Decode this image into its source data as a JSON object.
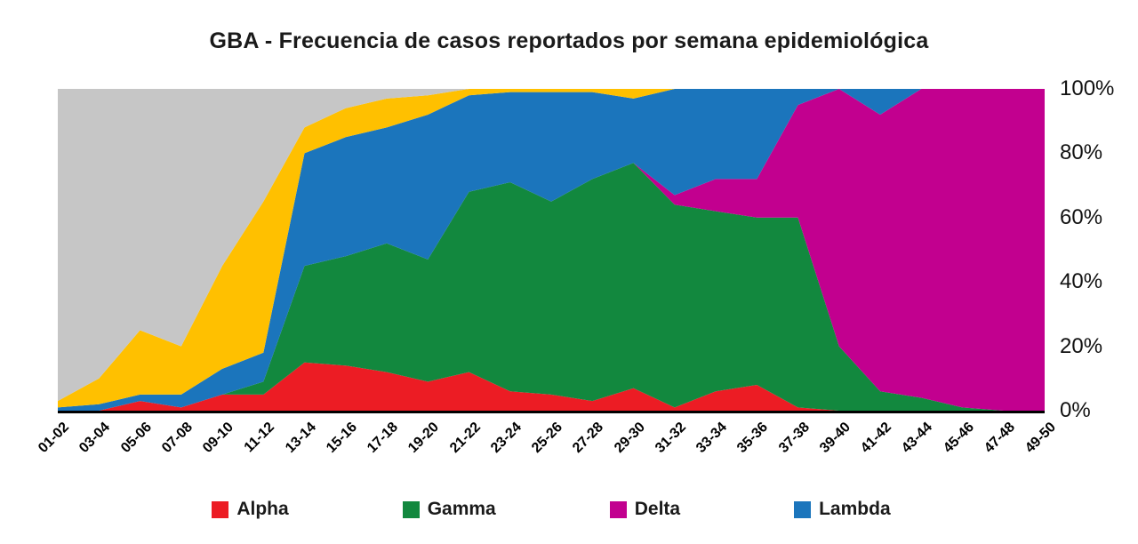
{
  "chart_data": {
    "type": "area",
    "stacked": true,
    "normalized": "percent",
    "title": "GBA - Frecuencia de casos reportados por semana epidemiológica",
    "xlabel": "",
    "ylabel": "",
    "ylim": [
      0,
      100
    ],
    "grid": false,
    "legend_position": "bottom",
    "y_axis_side": "right",
    "y_ticks": [
      "0%",
      "20%",
      "40%",
      "60%",
      "80%",
      "100%"
    ],
    "categories": [
      "01-02",
      "03-04",
      "05-06",
      "07-08",
      "09-10",
      "11-12",
      "13-14",
      "15-16",
      "17-18",
      "19-20",
      "21-22",
      "23-24",
      "25-26",
      "27-28",
      "29-30",
      "31-32",
      "33-34",
      "35-36",
      "37-38",
      "39-40",
      "41-42",
      "43-44",
      "45-46",
      "47-48",
      "49-50"
    ],
    "series": [
      {
        "id": "alpha",
        "name": "Alpha",
        "color": "#EC1C24",
        "values": [
          0,
          0,
          3,
          1,
          5,
          5,
          15,
          14,
          12,
          9,
          12,
          6,
          5,
          3,
          7,
          1,
          6,
          8,
          1,
          0,
          0,
          0,
          0,
          0,
          0
        ]
      },
      {
        "id": "gamma",
        "name": "Gamma",
        "color": "#12883E",
        "values": [
          0,
          0,
          0,
          0,
          0,
          4,
          30,
          34,
          40,
          38,
          56,
          65,
          60,
          69,
          70,
          63,
          56,
          52,
          59,
          20,
          6,
          4,
          1,
          0,
          0
        ]
      },
      {
        "id": "delta",
        "name": "Delta",
        "color": "#C2008F",
        "values": [
          0,
          0,
          0,
          0,
          0,
          0,
          0,
          0,
          0,
          0,
          0,
          0,
          0,
          0,
          0,
          3,
          10,
          12,
          35,
          80,
          86,
          96,
          99,
          100,
          100
        ]
      },
      {
        "id": "lambda",
        "name": "Lambda",
        "color": "#1B75BC",
        "values": [
          1,
          2,
          2,
          4,
          8,
          9,
          35,
          37,
          36,
          45,
          30,
          28,
          34,
          27,
          20,
          33,
          28,
          28,
          5,
          0,
          8,
          0,
          0,
          0,
          0
        ]
      },
      {
        "id": "other-yellow",
        "name": "",
        "color": "#FFC000",
        "values": [
          2,
          8,
          20,
          15,
          32,
          47,
          8,
          9,
          9,
          6,
          2,
          1,
          1,
          1,
          3,
          0,
          0,
          0,
          0,
          0,
          0,
          0,
          0,
          0,
          0
        ]
      },
      {
        "id": "other-gray",
        "name": "",
        "color": "#C6C6C6",
        "values": [
          97,
          90,
          75,
          80,
          55,
          35,
          12,
          6,
          3,
          2,
          0,
          0,
          0,
          0,
          0,
          0,
          0,
          0,
          0,
          0,
          0,
          0,
          0,
          0,
          0
        ]
      }
    ],
    "legend": [
      {
        "label": "Alpha",
        "color": "#EC1C24"
      },
      {
        "label": "Gamma",
        "color": "#12883E"
      },
      {
        "label": "Delta",
        "color": "#C2008F"
      },
      {
        "label": "Lambda",
        "color": "#1B75BC"
      }
    ]
  }
}
